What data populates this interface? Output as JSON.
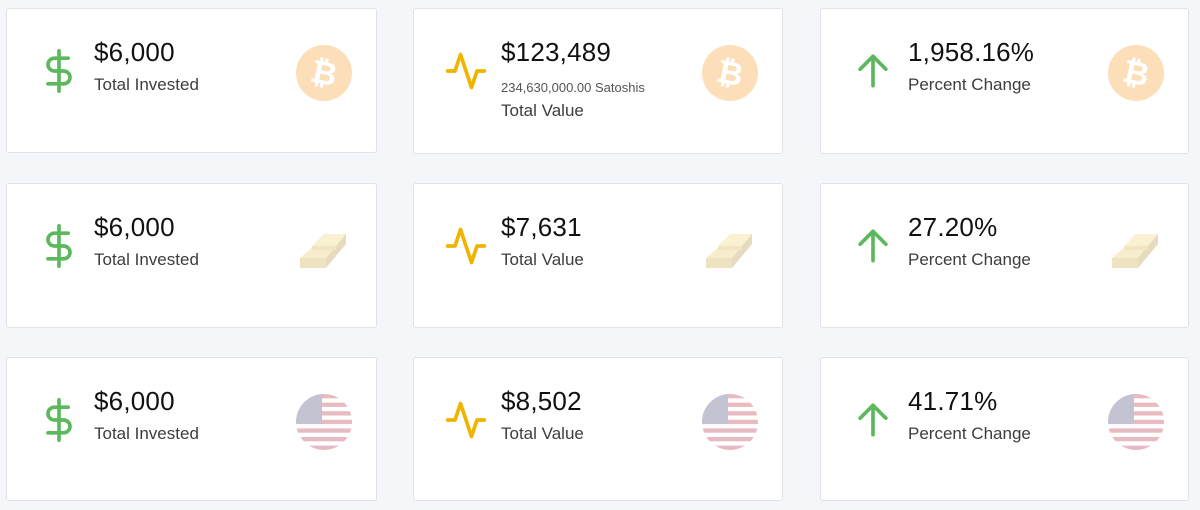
{
  "colors": {
    "invested": "#5cb85c",
    "value": "#f0b400",
    "change": "#5cb85c",
    "bitcoin": "#f7931a",
    "gold": "#d4aa3c"
  },
  "rows": [
    {
      "asset": "bitcoin-icon",
      "cards": [
        {
          "icon": "dollar-sign-icon",
          "value": "$6,000",
          "sub": "",
          "label": "Total Invested"
        },
        {
          "icon": "activity-icon",
          "value": "$123,489",
          "sub": "234,630,000.00 Satoshis",
          "label": "Total Value"
        },
        {
          "icon": "arrow-up-icon",
          "value": "1,958.16%",
          "sub": "",
          "label": "Percent Change"
        }
      ]
    },
    {
      "asset": "gold-bars-icon",
      "cards": [
        {
          "icon": "dollar-sign-icon",
          "value": "$6,000",
          "sub": "",
          "label": "Total Invested"
        },
        {
          "icon": "activity-icon",
          "value": "$7,631",
          "sub": "",
          "label": "Total Value"
        },
        {
          "icon": "arrow-up-icon",
          "value": "27.20%",
          "sub": "",
          "label": "Percent Change"
        }
      ]
    },
    {
      "asset": "us-flag-icon",
      "cards": [
        {
          "icon": "dollar-sign-icon",
          "value": "$6,000",
          "sub": "",
          "label": "Total Invested"
        },
        {
          "icon": "activity-icon",
          "value": "$8,502",
          "sub": "",
          "label": "Total Value"
        },
        {
          "icon": "arrow-up-icon",
          "value": "41.71%",
          "sub": "",
          "label": "Percent Change"
        }
      ]
    }
  ]
}
